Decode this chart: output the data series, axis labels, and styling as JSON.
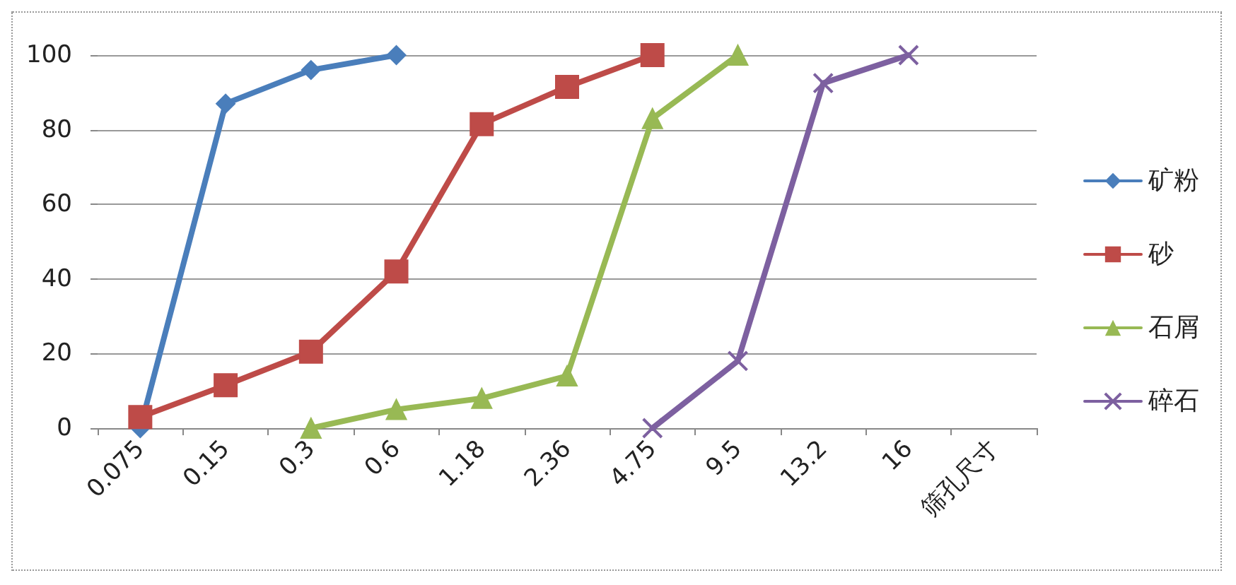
{
  "chart_data": {
    "type": "line",
    "categories": [
      "0.075",
      "0.15",
      "0.3",
      "0.6",
      "1.18",
      "2.36",
      "4.75",
      "9.5",
      "13.2",
      "16",
      "筛孔尺寸"
    ],
    "series": [
      {
        "name": "矿粉",
        "color": "#4a7ebb",
        "marker": "diamond",
        "values": [
          0,
          87,
          96,
          100,
          null,
          null,
          null,
          null,
          null,
          null,
          null
        ]
      },
      {
        "name": "砂",
        "color": "#be4b48",
        "marker": "square",
        "values": [
          3,
          11.5,
          20.5,
          42,
          81.5,
          91.5,
          100,
          null,
          null,
          null,
          null
        ]
      },
      {
        "name": "石屑",
        "color": "#98b954",
        "marker": "triangle",
        "values": [
          null,
          null,
          0,
          5,
          8,
          14,
          83,
          100,
          null,
          null,
          null
        ]
      },
      {
        "name": "碎石",
        "color": "#7d60a0",
        "marker": "cross",
        "values": [
          null,
          null,
          null,
          null,
          null,
          null,
          0,
          18,
          92.5,
          100,
          null
        ]
      }
    ],
    "ylim": [
      0,
      100
    ],
    "yticks": [
      0,
      20,
      40,
      60,
      80,
      100
    ],
    "grid": "y",
    "legend": "right"
  }
}
